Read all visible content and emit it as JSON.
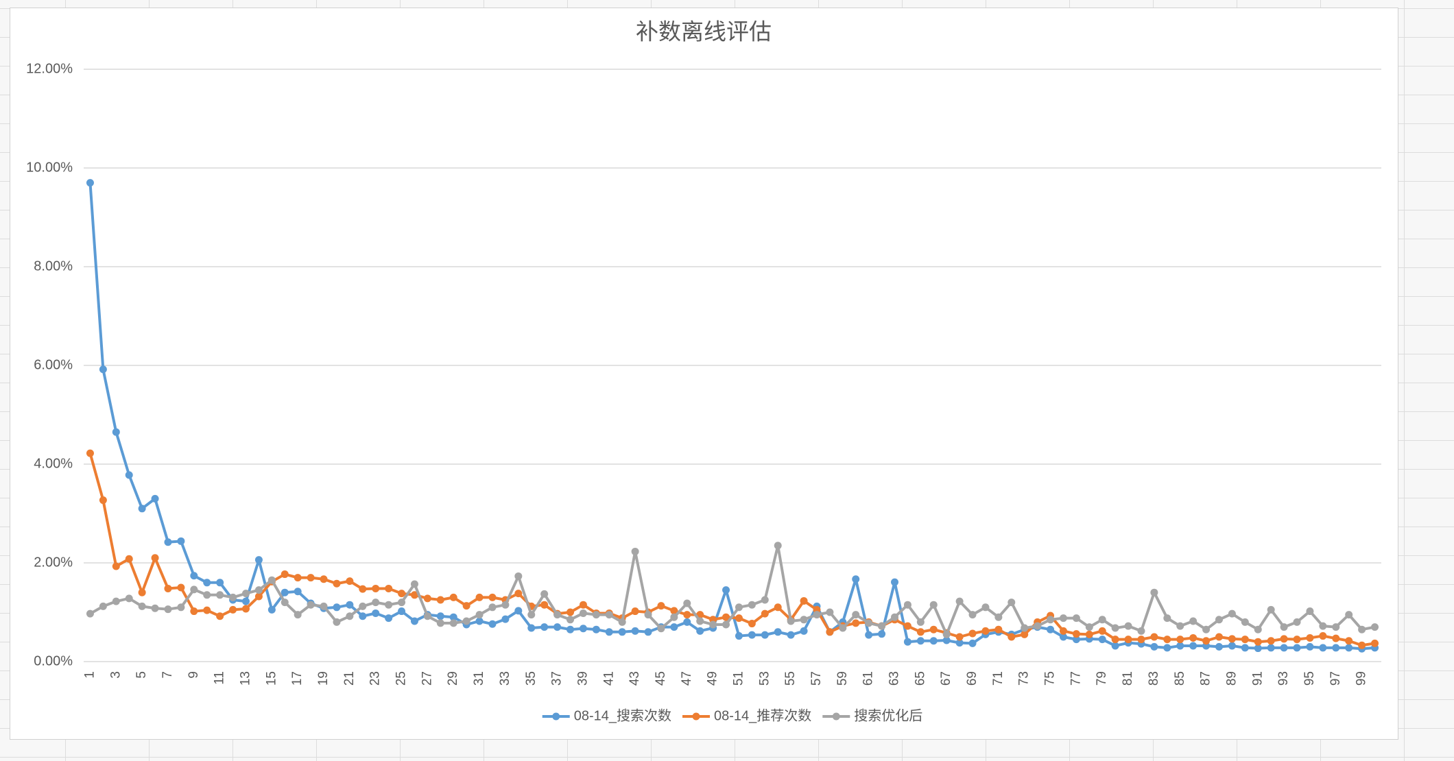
{
  "chart_data": {
    "type": "line",
    "title": "补数离线评估",
    "categories": [
      1,
      null,
      3,
      null,
      5,
      null,
      7,
      null,
      9,
      null,
      11,
      null,
      13,
      null,
      15,
      null,
      17,
      null,
      19,
      null,
      21,
      null,
      23,
      null,
      25,
      null,
      27,
      null,
      29,
      null,
      31,
      null,
      33,
      null,
      35,
      null,
      37,
      null,
      39,
      null,
      41,
      null,
      43,
      null,
      45,
      null,
      47,
      null,
      49,
      null,
      51,
      null,
      53,
      null,
      55,
      null,
      57,
      null,
      59,
      null,
      61,
      null,
      63,
      null,
      65,
      null,
      67,
      null,
      69,
      null,
      71,
      null,
      73,
      null,
      75,
      null,
      77,
      null,
      79,
      null,
      81,
      null,
      83,
      null,
      85,
      null,
      87,
      null,
      89,
      null,
      91,
      null,
      93,
      null,
      95,
      null,
      97,
      null,
      99,
      null
    ],
    "series": [
      {
        "name": "08-14_搜索次数",
        "color": "#5b9bd5",
        "values": [
          9.7,
          5.92,
          4.65,
          3.78,
          3.1,
          3.3,
          2.42,
          2.44,
          1.74,
          1.6,
          1.6,
          1.25,
          1.22,
          2.06,
          1.05,
          1.4,
          1.42,
          1.18,
          1.08,
          1.1,
          1.15,
          0.92,
          0.98,
          0.88,
          1.02,
          0.82,
          0.95,
          0.92,
          0.9,
          0.75,
          0.82,
          0.76,
          0.86,
          1.03,
          0.68,
          0.7,
          0.7,
          0.65,
          0.67,
          0.65,
          0.6,
          0.6,
          0.62,
          0.6,
          0.7,
          0.7,
          0.8,
          0.62,
          0.68,
          1.45,
          0.52,
          0.54,
          0.54,
          0.6,
          0.54,
          0.62,
          1.12,
          0.6,
          0.8,
          1.67,
          0.54,
          0.56,
          1.61,
          0.4,
          0.42,
          0.42,
          0.43,
          0.38,
          0.37,
          0.55,
          0.6,
          0.55,
          0.65,
          0.7,
          0.65,
          0.5,
          0.45,
          0.46,
          0.45,
          0.32,
          0.38,
          0.36,
          0.3,
          0.28,
          0.32,
          0.32,
          0.32,
          0.3,
          0.32,
          0.28,
          0.27,
          0.28,
          0.28,
          0.28,
          0.3,
          0.28,
          0.28,
          0.28,
          0.26,
          0.28
        ]
      },
      {
        "name": "08-14_推荐次数",
        "color": "#ed7d31",
        "values": [
          4.22,
          3.27,
          1.93,
          2.08,
          1.4,
          2.1,
          1.48,
          1.5,
          1.02,
          1.04,
          0.92,
          1.05,
          1.07,
          1.32,
          1.62,
          1.77,
          1.7,
          1.7,
          1.67,
          1.58,
          1.63,
          1.47,
          1.48,
          1.48,
          1.38,
          1.35,
          1.28,
          1.25,
          1.3,
          1.13,
          1.3,
          1.3,
          1.25,
          1.38,
          1.12,
          1.15,
          0.97,
          1.0,
          1.15,
          0.98,
          0.98,
          0.88,
          1.02,
          1.0,
          1.13,
          1.03,
          0.95,
          0.95,
          0.85,
          0.9,
          0.88,
          0.77,
          0.97,
          1.1,
          0.85,
          1.23,
          1.05,
          0.6,
          0.72,
          0.78,
          0.8,
          0.72,
          0.85,
          0.72,
          0.6,
          0.65,
          0.58,
          0.5,
          0.57,
          0.62,
          0.65,
          0.5,
          0.55,
          0.8,
          0.93,
          0.62,
          0.56,
          0.55,
          0.62,
          0.45,
          0.45,
          0.45,
          0.5,
          0.45,
          0.45,
          0.48,
          0.42,
          0.5,
          0.46,
          0.45,
          0.4,
          0.42,
          0.46,
          0.45,
          0.48,
          0.52,
          0.47,
          0.42,
          0.33,
          0.37
        ]
      },
      {
        "name": "搜索优化后",
        "color": "#a5a5a5",
        "values": [
          0.97,
          1.12,
          1.22,
          1.28,
          1.12,
          1.08,
          1.06,
          1.1,
          1.46,
          1.35,
          1.35,
          1.3,
          1.38,
          1.45,
          1.65,
          1.2,
          0.95,
          1.15,
          1.12,
          0.8,
          0.92,
          1.12,
          1.2,
          1.15,
          1.2,
          1.57,
          0.92,
          0.78,
          0.78,
          0.82,
          0.95,
          1.1,
          1.15,
          1.73,
          0.95,
          1.37,
          0.95,
          0.85,
          0.98,
          0.95,
          0.95,
          0.8,
          2.23,
          0.95,
          0.67,
          0.9,
          1.18,
          0.82,
          0.75,
          0.75,
          1.1,
          1.15,
          1.25,
          2.35,
          0.82,
          0.85,
          0.95,
          1.0,
          0.68,
          0.95,
          0.78,
          0.72,
          0.9,
          1.15,
          0.8,
          1.15,
          0.55,
          1.22,
          0.95,
          1.1,
          0.9,
          1.2,
          0.68,
          0.72,
          0.85,
          0.88,
          0.88,
          0.7,
          0.85,
          0.68,
          0.72,
          0.62,
          1.4,
          0.88,
          0.72,
          0.82,
          0.65,
          0.85,
          0.97,
          0.8,
          0.65,
          1.05,
          0.7,
          0.8,
          1.02,
          0.72,
          0.7,
          0.95,
          0.65,
          0.7
        ]
      }
    ],
    "ylim": [
      0,
      12
    ],
    "yticks": [
      {
        "value": 0,
        "label": "0.00%"
      },
      {
        "value": 2,
        "label": "2.00%"
      },
      {
        "value": 4,
        "label": "4.00%"
      },
      {
        "value": 6,
        "label": "6.00%"
      },
      {
        "value": 8,
        "label": "8.00%"
      },
      {
        "value": 10,
        "label": "10.00%"
      },
      {
        "value": 12,
        "label": "12.00%"
      }
    ],
    "grid": true,
    "legend": "bottom"
  }
}
